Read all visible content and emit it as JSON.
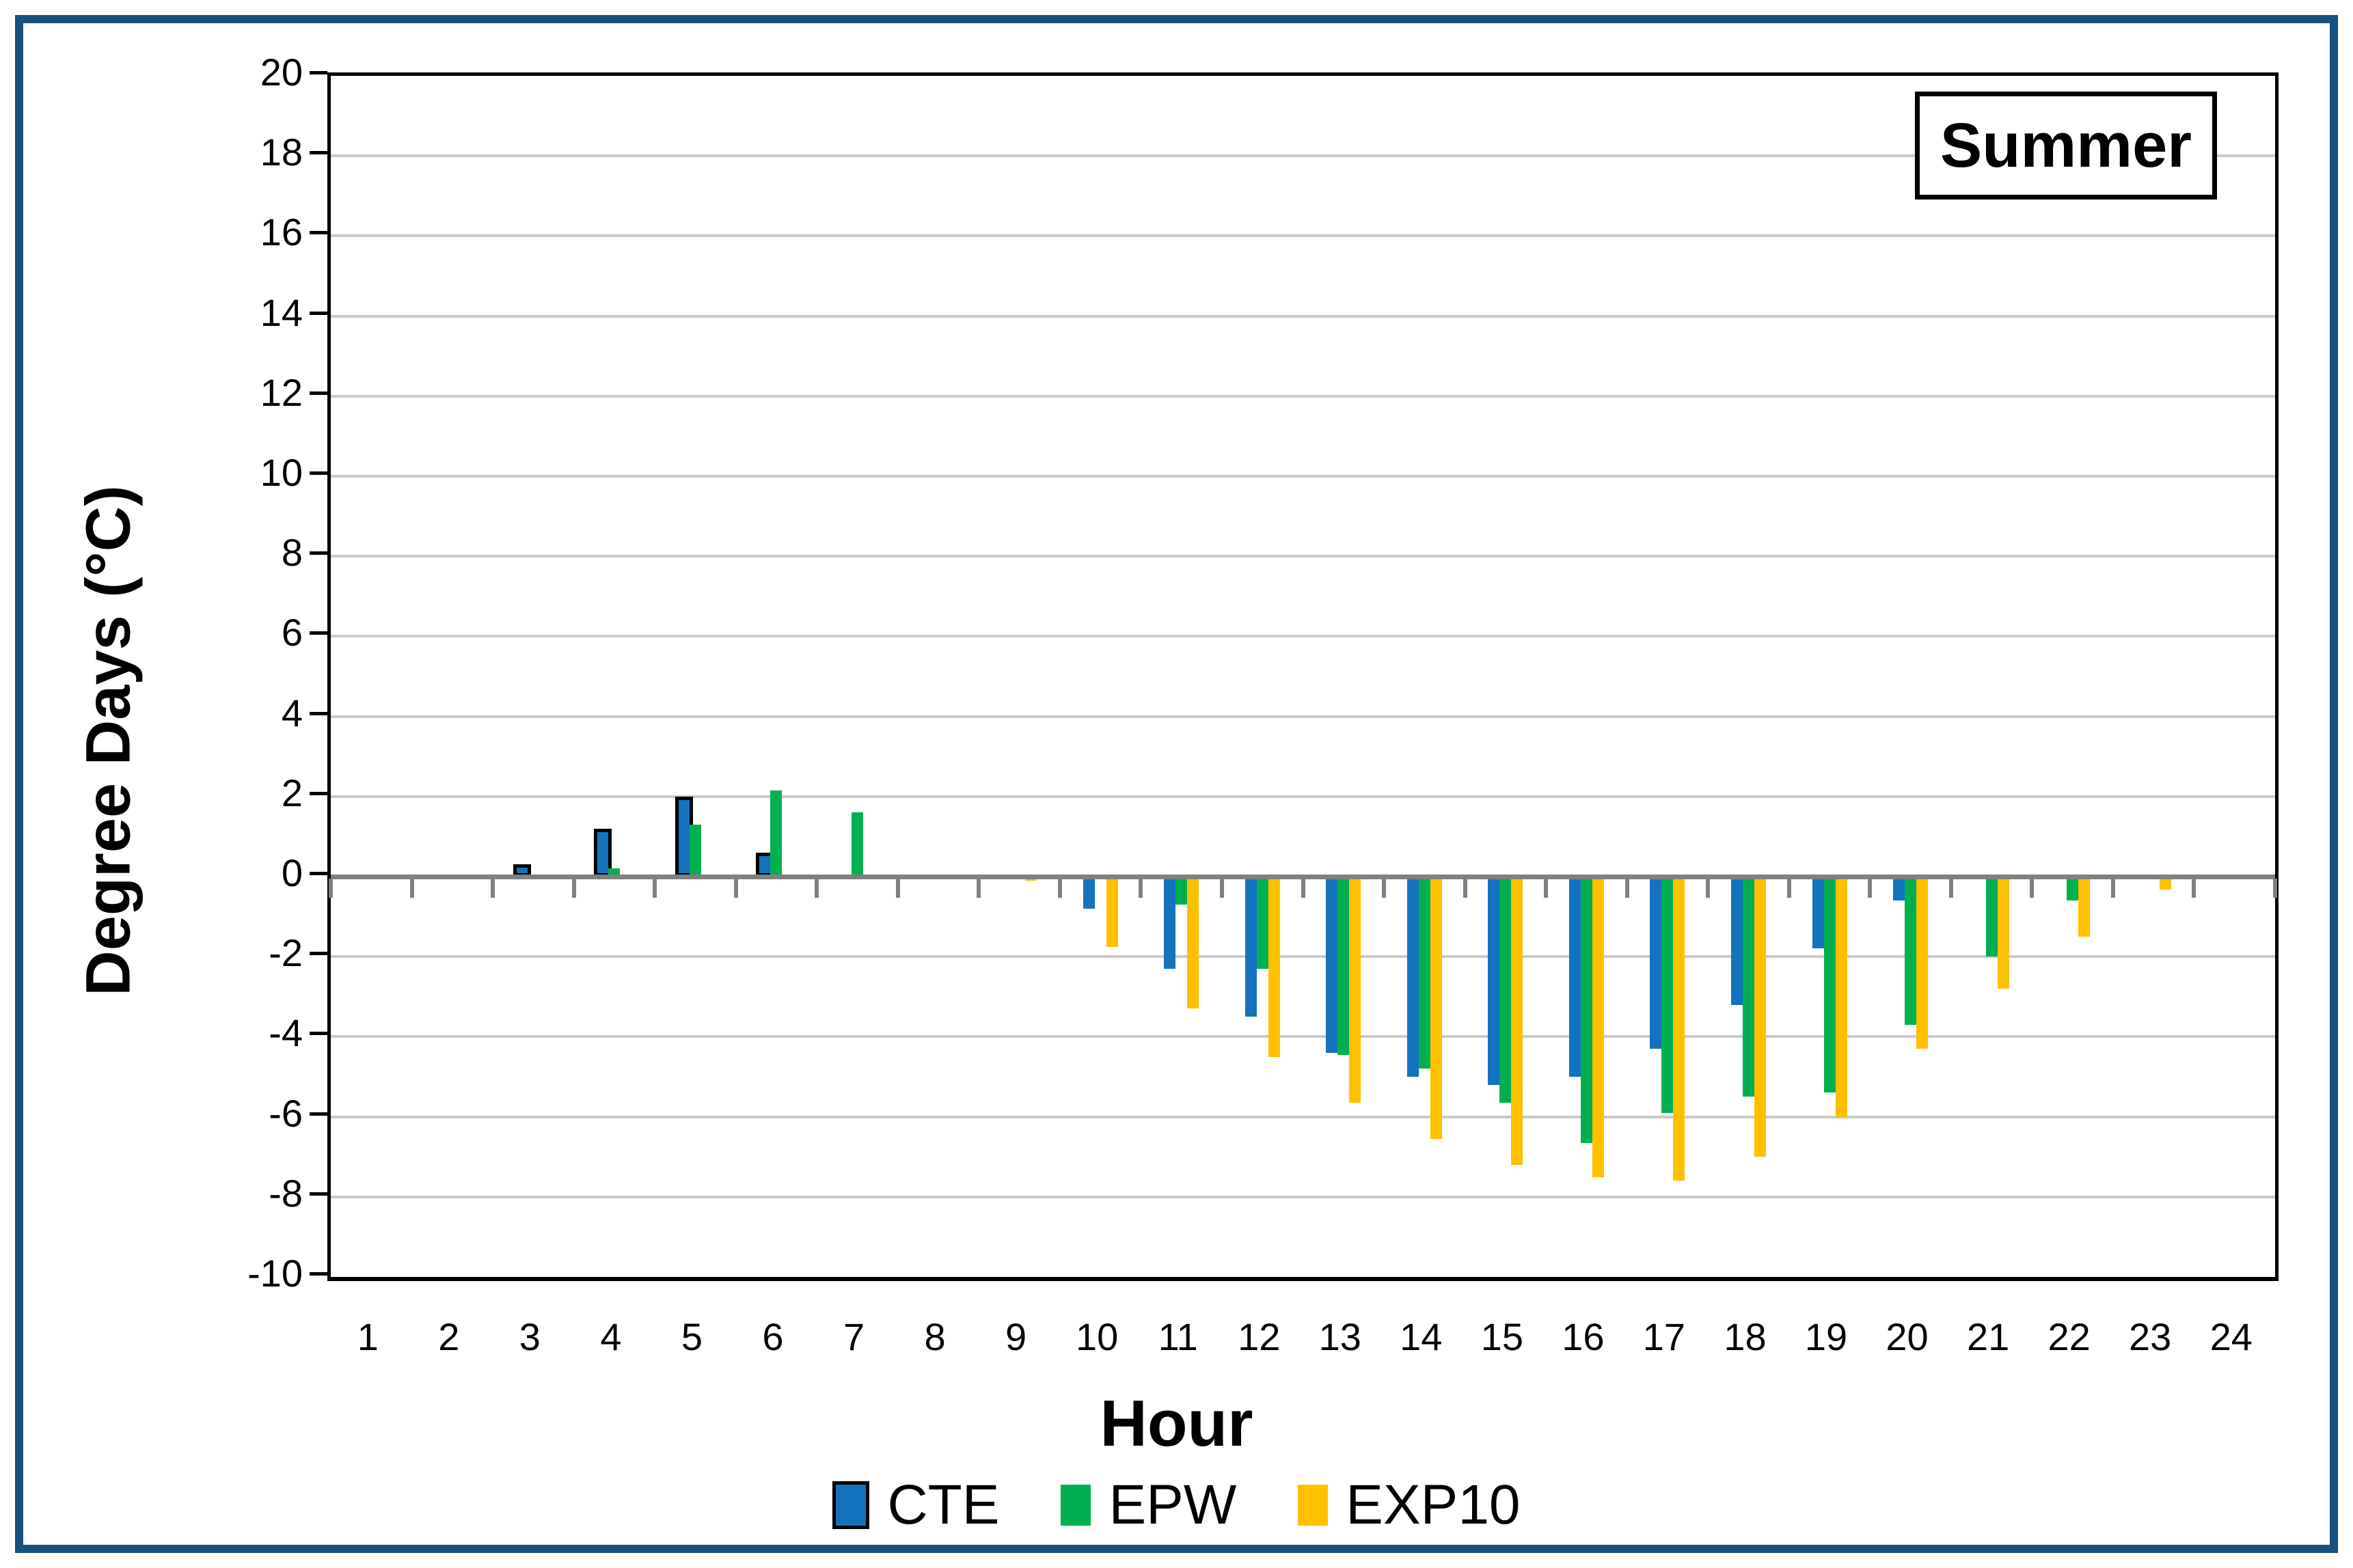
{
  "window": {
    "frame_color": "#17517E",
    "background": "#FFFFFF"
  },
  "title_box": {
    "label": "Summer"
  },
  "chart_data": {
    "type": "bar",
    "title": "Summer",
    "xlabel": "Hour",
    "ylabel": "Degree Days (°C)",
    "ylim": [
      -10,
      20
    ],
    "yticks": [
      20,
      18,
      16,
      14,
      12,
      10,
      8,
      6,
      4,
      2,
      0,
      -2,
      -4,
      -6,
      -8,
      -10
    ],
    "grid": true,
    "legend_position": "bottom",
    "colors": {
      "gridline": "#C9C9C9",
      "zero_line": "#808080",
      "axis": "#000000",
      "cte_border": "#000000"
    },
    "categories": [
      1,
      2,
      3,
      4,
      5,
      6,
      7,
      8,
      9,
      10,
      11,
      12,
      13,
      14,
      15,
      16,
      17,
      18,
      19,
      20,
      21,
      22,
      23,
      24
    ],
    "series": [
      {
        "name": "CTE",
        "color": "#1373BE",
        "positive_bar_border": "#000000",
        "values": [
          0,
          0,
          0.3,
          1.2,
          2.0,
          0.6,
          0,
          0,
          0,
          -0.8,
          -2.3,
          -3.5,
          -4.4,
          -5.0,
          -5.2,
          -5.0,
          -4.3,
          -3.2,
          -1.8,
          -0.6,
          0,
          0,
          0,
          0
        ]
      },
      {
        "name": "EPW",
        "color": "#00B050",
        "values": [
          0,
          0,
          0,
          0.2,
          1.3,
          2.15,
          1.6,
          0,
          0,
          0,
          -0.7,
          -2.3,
          -4.45,
          -4.8,
          -5.65,
          -6.65,
          -5.9,
          -5.5,
          -5.4,
          -3.7,
          -2.0,
          -0.6,
          0,
          0
        ]
      },
      {
        "name": "EXP10",
        "color": "#FFC000",
        "values": [
          0,
          0,
          0,
          0,
          0,
          0,
          0,
          0,
          -0.1,
          -1.75,
          -3.3,
          -4.5,
          -5.65,
          -6.55,
          -7.2,
          -7.5,
          -7.6,
          -7.0,
          -6.0,
          -4.3,
          -2.8,
          -1.5,
          -0.33,
          0
        ]
      }
    ]
  }
}
